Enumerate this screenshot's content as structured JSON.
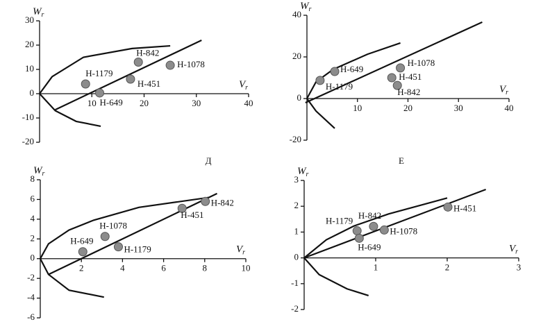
{
  "chart_data": [
    {
      "type": "scatter",
      "xlabel": "V",
      "xlabel_subscript": "r",
      "ylabel": "W",
      "ylabel_subscript": "r",
      "panel_label": "Д",
      "xlim": [
        0,
        40
      ],
      "ylim": [
        -20,
        30
      ],
      "xticks": [
        10,
        20,
        30,
        40
      ],
      "yticks": [
        -20,
        -10,
        0,
        10,
        20,
        30
      ],
      "point_labels": [
        "Н-1179",
        "Н-649",
        "Н-451",
        "Н-842",
        "Н-1078"
      ],
      "x": [
        8.8,
        11.5,
        17.4,
        18.9,
        25
      ],
      "values": [
        4,
        0.3,
        6,
        13,
        11.7
      ],
      "curves": [
        {
          "x": [
            3,
            31
          ],
          "y": [
            -6.6,
            22
          ]
        },
        {
          "x": [
            0,
            2.4,
            8.4,
            17.7,
            25
          ],
          "y": [
            0,
            7,
            15,
            18.6,
            19.7
          ]
        },
        {
          "x": [
            0,
            3,
            7,
            11.7
          ],
          "y": [
            0,
            -7,
            -11.4,
            -13.4
          ]
        }
      ]
    },
    {
      "type": "scatter",
      "xlabel": "V",
      "xlabel_subscript": "r",
      "ylabel": "W",
      "ylabel_subscript": "r",
      "panel_label": "Е",
      "xlim": [
        0,
        40
      ],
      "ylim": [
        -20,
        40
      ],
      "xticks": [
        10,
        20,
        30,
        40
      ],
      "yticks": [
        -20,
        0,
        20,
        40
      ],
      "point_labels": [
        "Н-1179",
        "Н-649",
        "Н-451",
        "Н-1078",
        "Н-842"
      ],
      "x": [
        2.6,
        5.5,
        16.8,
        18.5,
        17.9
      ],
      "values": [
        8.7,
        13,
        10,
        14.7,
        6.3
      ],
      "curves": [
        {
          "x": [
            -0.3,
            34.7
          ],
          "y": [
            -2,
            36.7
          ]
        },
        {
          "x": [
            0,
            1.8,
            5.2,
            12,
            18.5
          ],
          "y": [
            0,
            8,
            14,
            21.3,
            26.7
          ]
        },
        {
          "x": [
            0,
            1.8,
            5.5
          ],
          "y": [
            0,
            -6,
            -14.3
          ]
        }
      ]
    },
    {
      "type": "scatter",
      "xlabel": "V",
      "xlabel_subscript": "r",
      "ylabel": "W",
      "ylabel_subscript": "r",
      "xlim": [
        0,
        10
      ],
      "ylim": [
        -6,
        8
      ],
      "xticks": [
        2,
        4,
        6,
        8,
        10
      ],
      "yticks": [
        -6,
        -4,
        -2,
        0,
        2,
        4,
        6,
        8
      ],
      "point_labels": [
        "Н-649",
        "Н-1078",
        "Н-1179",
        "Н-451",
        "Н-842"
      ],
      "x": [
        2.07,
        3.15,
        3.8,
        6.9,
        8.03
      ],
      "values": [
        0.7,
        2.25,
        1.2,
        5.1,
        5.8
      ],
      "curves": [
        {
          "x": [
            0.4,
            8.6
          ],
          "y": [
            -1.6,
            6.6
          ]
        },
        {
          "x": [
            0,
            0.4,
            1.4,
            2.6,
            4.8,
            8.2
          ],
          "y": [
            0,
            1.5,
            2.9,
            3.9,
            5.2,
            6.2
          ]
        },
        {
          "x": [
            0,
            0.4,
            1.4,
            3.1
          ],
          "y": [
            0,
            -1.6,
            -3.2,
            -3.9
          ]
        }
      ]
    },
    {
      "type": "scatter",
      "xlabel": "V",
      "xlabel_subscript": "r",
      "ylabel": "W",
      "ylabel_subscript": "r",
      "xlim": [
        0,
        3
      ],
      "ylim": [
        -2,
        3
      ],
      "xticks": [
        1,
        2,
        3
      ],
      "yticks": [
        -2,
        -1,
        0,
        1,
        2,
        3
      ],
      "point_labels": [
        "Н-1179",
        "Н-649",
        "Н-842",
        "Н-1078",
        "Н-451"
      ],
      "x": [
        0.74,
        0.77,
        0.97,
        1.12,
        2.01
      ],
      "values": [
        1.05,
        0.76,
        1.22,
        1.08,
        1.97
      ],
      "curves": [
        {
          "x": [
            0,
            2.54
          ],
          "y": [
            0,
            2.65
          ]
        },
        {
          "x": [
            0,
            0.31,
            0.7,
            1.18,
            2.0
          ],
          "y": [
            0,
            0.7,
            1.24,
            1.7,
            2.32
          ]
        },
        {
          "x": [
            0,
            0.21,
            0.6,
            0.9
          ],
          "y": [
            0,
            -0.65,
            -1.2,
            -1.46
          ]
        }
      ]
    }
  ]
}
